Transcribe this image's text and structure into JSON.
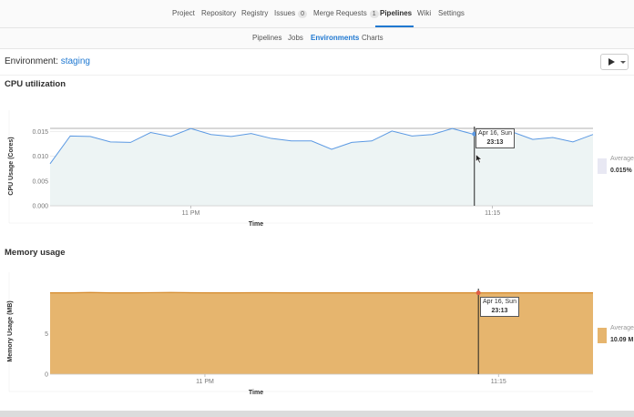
{
  "topnav": {
    "items": [
      {
        "label": "Project"
      },
      {
        "label": "Repository"
      },
      {
        "label": "Registry"
      },
      {
        "label": "Issues",
        "badge": "0"
      },
      {
        "label": "Merge Requests",
        "badge": "1"
      },
      {
        "label": "Pipelines"
      },
      {
        "label": "Wiki"
      },
      {
        "label": "Settings"
      }
    ],
    "active": "Pipelines"
  },
  "subnav": {
    "items": [
      {
        "label": "Pipelines"
      },
      {
        "label": "Jobs"
      },
      {
        "label": "Environments"
      },
      {
        "label": "Charts"
      }
    ],
    "active": "Environments"
  },
  "environment": {
    "prefix": "Environment:",
    "name": "staging"
  },
  "colors": {
    "accent": "#1f78d1",
    "cpu_line": "#5b99e3",
    "cpu_fill": "#edf4f4",
    "mem_fill": "#e6b56e",
    "mem_line": "#d58a2d"
  },
  "cpu": {
    "title": "CPU utilization",
    "legend_label": "Average",
    "legend_value": "0.015%",
    "tooltip": {
      "line1": "Apr 16, Sun",
      "line2": "23:13"
    }
  },
  "memory": {
    "title": "Memory usage",
    "legend_label": "Average",
    "legend_value": "10.09 M",
    "tooltip": {
      "line1": "Apr 16, Sun",
      "line2": "23:13"
    }
  },
  "chart_data": [
    {
      "type": "area",
      "xlabel": "Time",
      "ylabel": "CPU Usage (Cores)",
      "ylim": [
        0,
        0.016
      ],
      "yticks": [
        "0.000",
        "0.005",
        "0.010",
        "0.015"
      ],
      "ytick_values": [
        0,
        0.005,
        0.01,
        0.015
      ],
      "xticks": [
        "11 PM",
        "11:15"
      ],
      "xtick_values": [
        7,
        22
      ],
      "xlim": [
        0,
        27
      ],
      "grid": true,
      "series": [
        {
          "values": [
            0.0085,
            0.0141,
            0.014,
            0.0129,
            0.0128,
            0.0148,
            0.014,
            0.0156,
            0.0144,
            0.014,
            0.0146,
            0.0136,
            0.0131,
            0.0131,
            0.0114,
            0.0128,
            0.0131,
            0.0151,
            0.0141,
            0.0144,
            0.0156,
            0.0145,
            0.0147,
            0.0149,
            0.0134,
            0.0138,
            0.0129,
            0.0144
          ]
        }
      ],
      "cursor_x": 21.1
    },
    {
      "type": "area",
      "xlabel": "Time",
      "ylabel": "Memory Usage (MB)",
      "ylim": [
        0,
        10.6
      ],
      "yticks": [
        "0",
        "5"
      ],
      "ytick_values": [
        0,
        5
      ],
      "xticks": [
        "11 PM",
        "11:15"
      ],
      "xtick_values": [
        7.7,
        22.3
      ],
      "xlim": [
        0,
        27
      ],
      "grid": true,
      "series": [
        {
          "values": [
            10.08,
            10.08,
            10.12,
            10.08,
            10.08,
            10.1,
            10.13,
            10.09,
            10.08,
            10.08,
            10.09,
            10.09,
            10.08,
            10.08,
            10.08,
            10.08,
            10.08,
            10.08,
            10.08,
            10.08,
            10.08,
            10.08,
            10.08,
            10.08,
            10.08,
            10.08,
            10.08,
            10.08
          ]
        }
      ],
      "cursor_x": 21.3
    }
  ]
}
